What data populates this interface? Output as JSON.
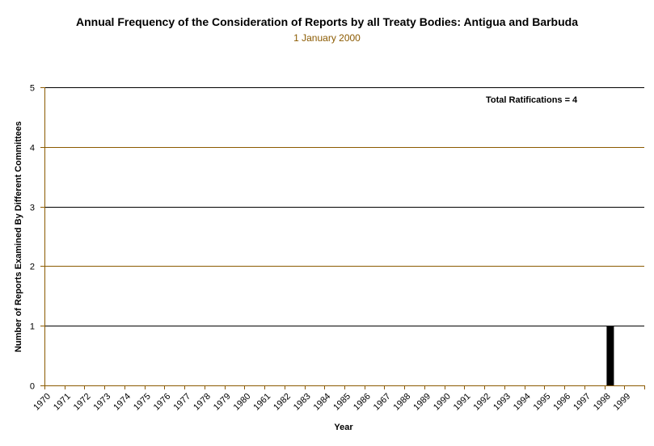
{
  "chart_data": {
    "type": "bar",
    "title": "Annual Frequency of the Consideration of Reports by all Treaty Bodies: Antigua and Barbuda",
    "subtitle": "1 January 2000",
    "xlabel": "Year",
    "ylabel": "Number of Reports Examined By Different Committees",
    "ylim": [
      0,
      5
    ],
    "yticks": [
      "0",
      "1",
      "2",
      "3",
      "4",
      "5"
    ],
    "categories": [
      "1970",
      "1971",
      "1972",
      "1973",
      "1974",
      "1975",
      "1976",
      "1977",
      "1978",
      "1979",
      "1980",
      "1961",
      "1982",
      "1983",
      "1984",
      "1985",
      "1986",
      "1967",
      "1988",
      "1989",
      "1990",
      "1991",
      "1992",
      "1993",
      "1994",
      "1995",
      "1996",
      "1997",
      "1998",
      "1999"
    ],
    "values": [
      0,
      0,
      0,
      0,
      0,
      0,
      0,
      0,
      0,
      0,
      0,
      0,
      0,
      0,
      0,
      0,
      0,
      0,
      0,
      0,
      0,
      0,
      0,
      0,
      0,
      0,
      0,
      0,
      1,
      0
    ],
    "annotation": "Total Ratifications = 4",
    "grid": true,
    "colors": {
      "bar": "#000000",
      "grid_dark": "#000000",
      "grid_brown": "#8b5a00",
      "axis": "#8b5a00",
      "subtitle": "#8b5a00"
    }
  }
}
